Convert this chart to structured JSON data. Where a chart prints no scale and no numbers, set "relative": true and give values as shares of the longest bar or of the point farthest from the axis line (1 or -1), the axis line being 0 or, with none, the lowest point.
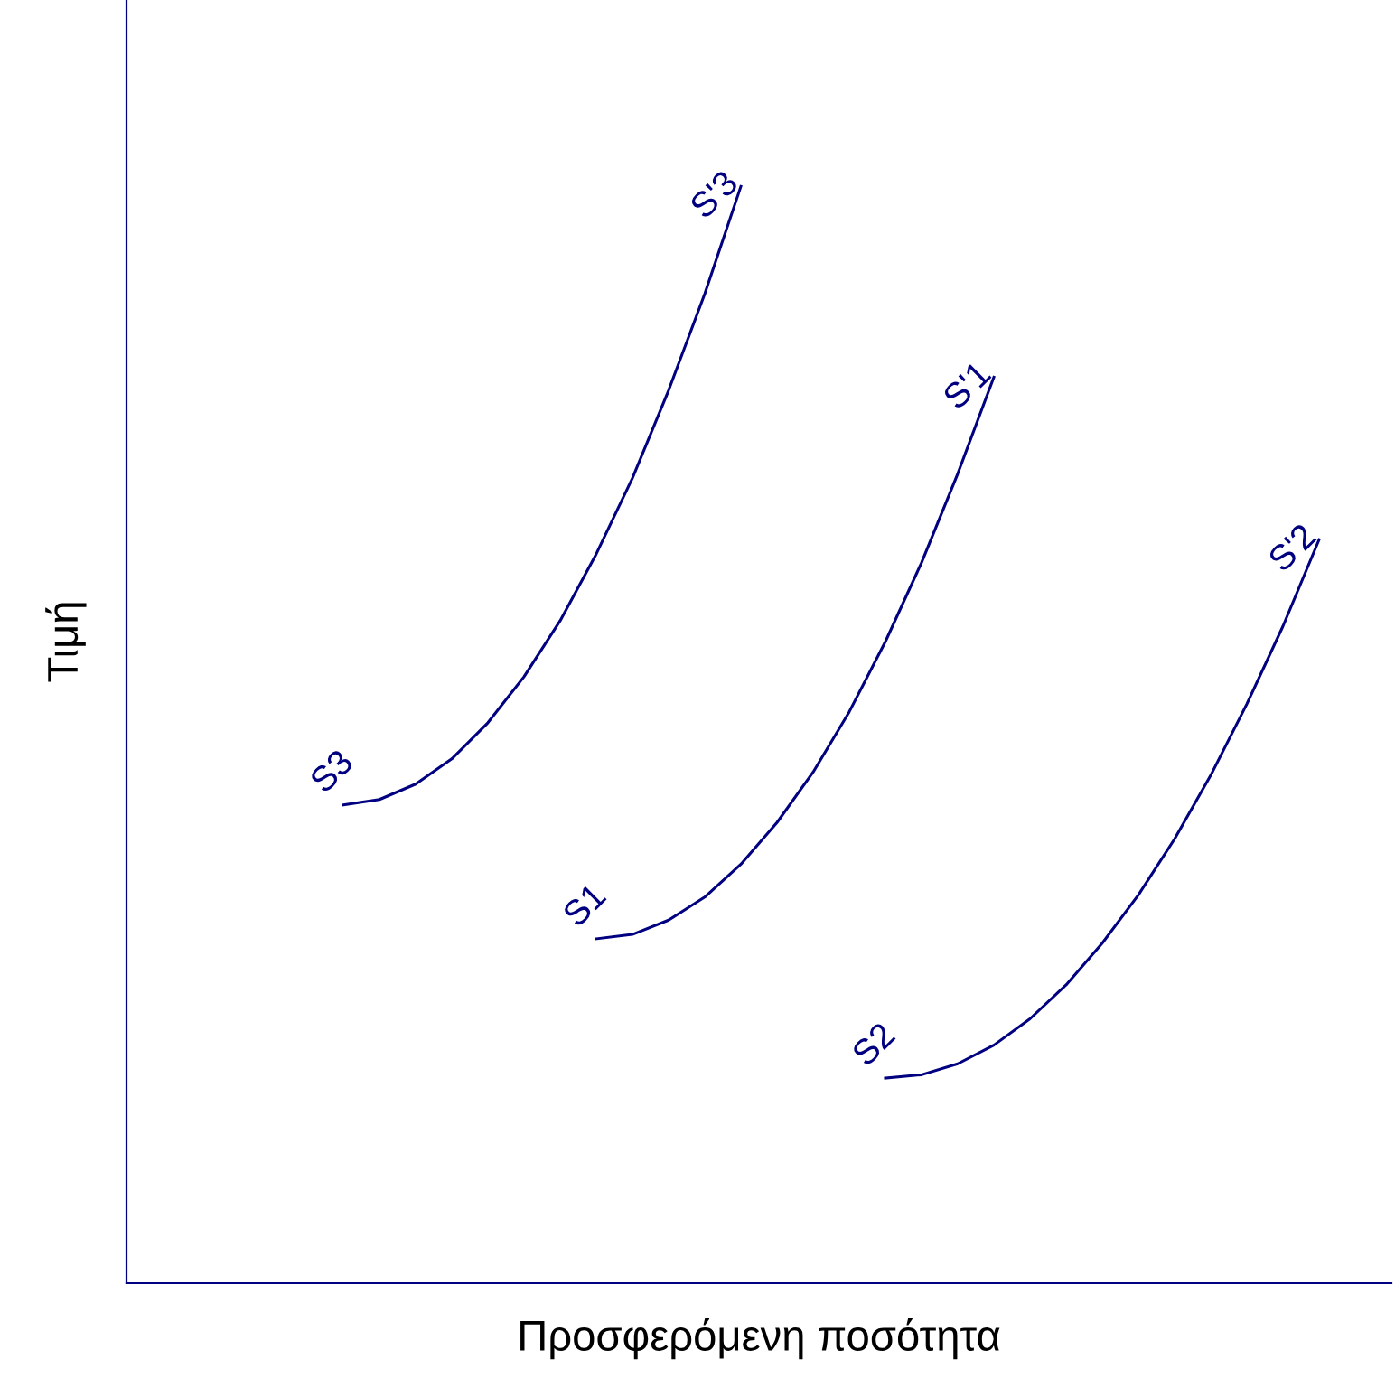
{
  "chart_data": {
    "type": "line",
    "relative": true,
    "xlabel": "Προσφερόμενη ποσότητα",
    "ylabel": "Τιμή",
    "tick_labels": false,
    "legend": false,
    "marker": "none",
    "line_style": "solid",
    "categories": [
      null,
      null,
      null,
      null,
      null,
      null,
      null,
      null,
      null,
      null,
      null,
      null,
      null,
      null,
      null,
      null,
      null,
      null,
      null,
      null,
      null,
      null,
      null,
      null,
      null,
      null,
      null,
      null,
      null,
      null,
      null,
      null,
      null,
      null,
      null,
      null
    ],
    "series": [
      {
        "color": "#000080",
        "values": [
          null,
          null,
          null,
          null,
          null,
          null,
          0.436,
          0.441,
          0.455,
          0.478,
          0.511,
          0.553,
          0.604,
          0.665,
          0.734,
          0.814,
          0.902,
          1.0,
          null,
          null,
          null,
          null,
          null,
          null,
          null,
          null,
          null,
          null,
          null,
          null,
          null,
          null,
          null,
          null,
          null,
          null
        ]
      },
      {
        "color": "#000080",
        "values": [
          null,
          null,
          null,
          null,
          null,
          null,
          null,
          null,
          null,
          null,
          null,
          null,
          null,
          0.314,
          0.318,
          0.331,
          0.352,
          0.382,
          0.42,
          0.466,
          0.521,
          0.585,
          0.657,
          0.738,
          0.826,
          null,
          null,
          null,
          null,
          null,
          null,
          null,
          null,
          null,
          null,
          null
        ]
      },
      {
        "color": "#000080",
        "values": [
          null,
          null,
          null,
          null,
          null,
          null,
          null,
          null,
          null,
          null,
          null,
          null,
          null,
          null,
          null,
          null,
          null,
          null,
          null,
          null,
          null,
          0.187,
          0.19,
          0.2,
          0.217,
          0.241,
          0.272,
          0.31,
          0.354,
          0.405,
          0.463,
          0.528,
          0.599,
          0.678,
          null,
          null
        ]
      }
    ],
    "annotations": [
      "S3",
      "S'3",
      "S1",
      "S'1",
      "S2",
      "S'2"
    ]
  }
}
